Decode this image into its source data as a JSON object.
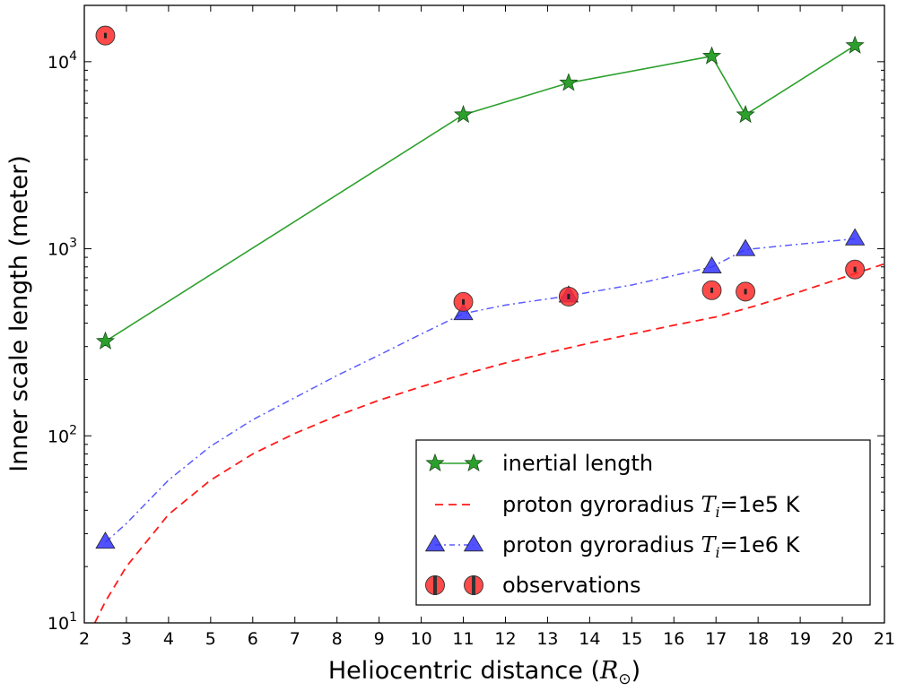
{
  "chart_data": {
    "type": "scatter",
    "title": "",
    "xlabel_prefix": "Heliocentric distance (",
    "xlabel_symbol": "R",
    "xlabel_sub": "⊙",
    "xlabel_suffix": ")",
    "ylabel": "Inner scale length (meter)",
    "xlim": [
      2,
      21
    ],
    "ylim": [
      10,
      20000
    ],
    "yscale": "log",
    "x_ticks": [
      2,
      3,
      4,
      5,
      6,
      7,
      8,
      9,
      10,
      11,
      12,
      13,
      14,
      15,
      16,
      17,
      18,
      19,
      20,
      21
    ],
    "y_ticks": [
      {
        "value": 10,
        "base": "10",
        "exp": "1"
      },
      {
        "value": 100,
        "base": "10",
        "exp": "2"
      },
      {
        "value": 1000,
        "base": "10",
        "exp": "3"
      },
      {
        "value": 10000,
        "base": "10",
        "exp": "4"
      }
    ],
    "grid": false,
    "legend_position": "lower-right",
    "series": [
      {
        "key": "inertial",
        "name": "inertial length",
        "style": "solid-line-star",
        "color": "#2ca02c",
        "points": [
          [
            2.5,
            320
          ],
          [
            11.0,
            5200
          ],
          [
            13.5,
            7700
          ],
          [
            16.9,
            10700
          ],
          [
            17.7,
            5200
          ],
          [
            20.3,
            12200
          ]
        ]
      },
      {
        "key": "gyro1e5",
        "name_prefix": "proton gyroradius ",
        "name_sym": "T",
        "name_sub": "i",
        "name_suffix": "=1e5 K",
        "style": "dashed-line",
        "color": "#ff1a1a",
        "points": [
          [
            2.25,
            10
          ],
          [
            2.5,
            13
          ],
          [
            3,
            20
          ],
          [
            4,
            38
          ],
          [
            5,
            58
          ],
          [
            6,
            80
          ],
          [
            7,
            103
          ],
          [
            8,
            128
          ],
          [
            9,
            155
          ],
          [
            10,
            183
          ],
          [
            11,
            213
          ],
          [
            12,
            245
          ],
          [
            13,
            278
          ],
          [
            14,
            313
          ],
          [
            15,
            350
          ],
          [
            16,
            390
          ],
          [
            17,
            432
          ],
          [
            18,
            500
          ],
          [
            19,
            590
          ],
          [
            20,
            700
          ],
          [
            21,
            830
          ]
        ]
      },
      {
        "key": "gyro1e6",
        "name_prefix": "proton gyroradius ",
        "name_sym": "T",
        "name_sub": "i",
        "name_suffix": "=1e6 K",
        "style": "dashdot-line-triangle",
        "color": "#3333ff",
        "markers": [
          [
            2.5,
            27
          ],
          [
            11.0,
            450
          ],
          [
            13.5,
            560
          ],
          [
            16.9,
            800
          ],
          [
            17.7,
            990
          ],
          [
            20.3,
            1130
          ]
        ],
        "line": [
          [
            2.5,
            27
          ],
          [
            3,
            34
          ],
          [
            4,
            58
          ],
          [
            5,
            88
          ],
          [
            6,
            122
          ],
          [
            7,
            160
          ],
          [
            8,
            210
          ],
          [
            9,
            270
          ],
          [
            10,
            350
          ],
          [
            11,
            450
          ],
          [
            12,
            500
          ],
          [
            13.5,
            560
          ],
          [
            15,
            640
          ],
          [
            16.9,
            800
          ],
          [
            17.7,
            990
          ],
          [
            19,
            1060
          ],
          [
            20.3,
            1130
          ]
        ]
      },
      {
        "key": "obs",
        "name": "observations",
        "style": "circle-errorbar",
        "color": "#ff2a2a",
        "points": [
          [
            2.5,
            13800
          ],
          [
            11.0,
            520
          ],
          [
            13.5,
            555
          ],
          [
            16.9,
            600
          ],
          [
            17.7,
            590
          ],
          [
            20.3,
            775
          ]
        ]
      }
    ]
  }
}
